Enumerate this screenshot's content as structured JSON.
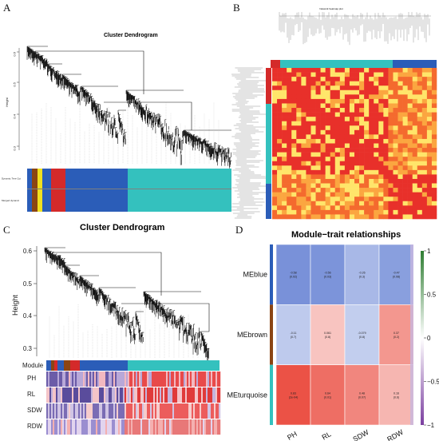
{
  "panels": {
    "A": {
      "label": "A",
      "title": "Cluster Dendrogram",
      "ylabel": "Height",
      "yticks": [
        "0.6",
        "0.5",
        "0.4",
        "0.3"
      ],
      "bars": [
        "Dynamic Tree Cut",
        "Merged dynamic"
      ]
    },
    "B": {
      "label": "B",
      "title": "Network heatmap plot"
    },
    "C": {
      "label": "C",
      "title": "Cluster Dendrogram",
      "ylabel": "Height",
      "yticks": [
        "0.6",
        "0.5",
        "0.4",
        "0.3"
      ],
      "rows": [
        "Module",
        "PH",
        "RL",
        "SDW",
        "RDW"
      ]
    },
    "D": {
      "label": "D",
      "title": "Module−trait relationships",
      "rows": [
        "MEblue",
        "MEbrown",
        "MEturquoise"
      ],
      "cols": [
        "PH",
        "RL",
        "SDW",
        "RDW"
      ],
      "scale_ticks": [
        "1",
        "0.5",
        "0",
        "−0.5",
        "−1"
      ]
    }
  },
  "chart_data": {
    "type": "heatmap",
    "title": "Module−trait relationships",
    "x": [
      "PH",
      "RL",
      "SDW",
      "RDW"
    ],
    "y": [
      "MEblue",
      "MEbrown",
      "MEturquoise"
    ],
    "cells": [
      [
        {
          "value": -0.58,
          "p": "(0.02)"
        },
        {
          "value": -0.56,
          "p": "(0.03)"
        },
        {
          "value": -0.26,
          "p": "(0.3)"
        },
        {
          "value": -0.47,
          "p": "(0.08)"
        }
      ],
      [
        {
          "value": -0.11,
          "p": "(0.7)"
        },
        {
          "value": 0.061,
          "p": "(0.8)"
        },
        {
          "value": -0.079,
          "p": "(0.8)"
        },
        {
          "value": 0.37,
          "p": "(0.2)"
        }
      ],
      [
        {
          "value": 0.83,
          "p": "(2e-04)"
        },
        {
          "value": 0.64,
          "p": "(0.01)"
        },
        {
          "value": 0.48,
          "p": "(0.07)"
        },
        {
          "value": 0.16,
          "p": "(0.6)"
        }
      ]
    ],
    "scale_range": [
      -1,
      1
    ],
    "colors": {
      "negative": "#3B5FC8",
      "neutral": "#FFFFFF",
      "positive": "#E8392B"
    }
  },
  "colors": {
    "module_blue": "#2B5DB8",
    "module_turquoise": "#34C1BE",
    "module_brown": "#8B4513",
    "module_red": "#D42A2A",
    "module_yellow": "#F0E020",
    "heat_red": "#E8302A",
    "heat_yellow": "#FFE56A",
    "scale_green": "#2E7D32",
    "scale_purple": "#7B3FA0"
  }
}
